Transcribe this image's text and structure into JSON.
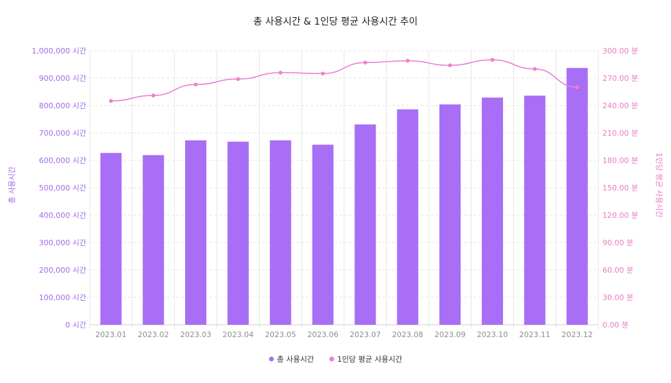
{
  "colors": {
    "bar": "#a86ef5",
    "line": "#ee80d2",
    "left_axis": "#a06ae8",
    "right_axis": "#e97bc7",
    "grid": "#e3e3e3"
  },
  "chart_data": {
    "type": "bar",
    "title": "총 사용시간 & 1인당 평균 사용시간 추이",
    "categories": [
      "2023.01",
      "2023.02",
      "2023.03",
      "2023.04",
      "2023.05",
      "2023.06",
      "2023.07",
      "2023.08",
      "2023.09",
      "2023.10",
      "2023.11",
      "2023.12"
    ],
    "series": [
      {
        "name": "총 사용시간",
        "type": "bar",
        "axis": "left",
        "values": [
          627000,
          619000,
          673000,
          668000,
          673000,
          657000,
          731000,
          786000,
          804000,
          829000,
          836000,
          937000
        ]
      },
      {
        "name": "1인당 평균 사용시간",
        "type": "line",
        "axis": "right",
        "values": [
          245,
          251,
          263,
          269,
          276,
          275,
          287,
          289,
          284,
          290,
          280,
          260
        ]
      }
    ],
    "ylabel": "총 사용시간",
    "y2label": "1인당 평균 사용시간",
    "ylim": [
      0,
      1000000
    ],
    "y2lim": [
      0,
      300
    ],
    "yticks": [
      "0 시간",
      "100,000 시간",
      "200,000 시간",
      "300,000 시간",
      "400,000 시간",
      "500,000 시간",
      "600,000 시간",
      "700,000 시간",
      "800,000 시간",
      "900,000 시간",
      "1,000,000 시간"
    ],
    "y2ticks": [
      "0.00 분",
      "30.00 분",
      "60.00 분",
      "90.00 분",
      "120.00 분",
      "150.00 분",
      "180.00 분",
      "210.00 분",
      "240.00 분",
      "270.00 분",
      "300.00 분"
    ],
    "grid": true,
    "legend": "bottom-center"
  }
}
